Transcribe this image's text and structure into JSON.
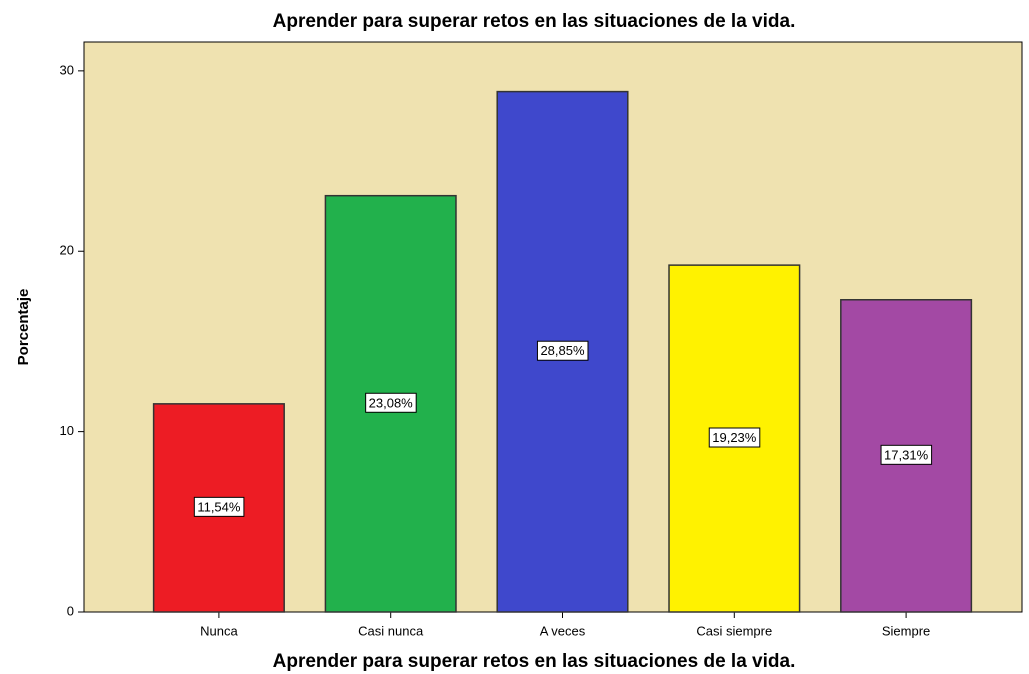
{
  "chart_data": {
    "type": "bar",
    "title": "Aprender para superar retos en las situaciones de la vida.",
    "x_label": "Aprender para superar retos en las situaciones de la vida.",
    "y_label": "Porcentaje",
    "categories": [
      "Nunca",
      "Casi nunca",
      "A veces",
      "Casi siempre",
      "Siempre"
    ],
    "values": [
      11.54,
      23.08,
      28.85,
      19.23,
      17.31
    ],
    "value_labels": [
      "11,54%",
      "23,08%",
      "28,85%",
      "19,23%",
      "17,31%"
    ],
    "colors": [
      "#ed1c24",
      "#22b14c",
      "#3f48cc",
      "#fff200",
      "#a349a4"
    ],
    "ylim": [
      0,
      31.6
    ],
    "yticks": [
      0,
      10,
      20,
      30
    ]
  }
}
